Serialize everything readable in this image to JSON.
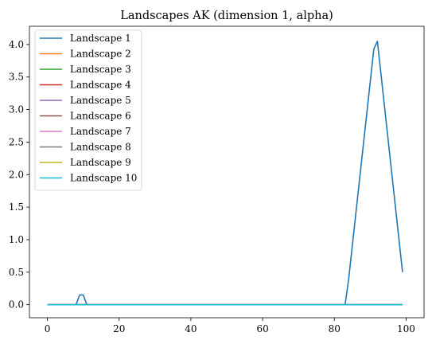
{
  "chart_data": {
    "type": "line",
    "title": "Landscapes AK (dimension 1, alpha)",
    "xlabel": "",
    "ylabel": "",
    "xlim": [
      -5,
      105
    ],
    "ylim": [
      -0.2,
      4.28
    ],
    "xticks": [
      0,
      20,
      40,
      60,
      80,
      100
    ],
    "yticks": [
      0.0,
      0.5,
      1.0,
      1.5,
      2.0,
      2.5,
      3.0,
      3.5,
      4.0
    ],
    "ytick_labels": [
      "0.0",
      "0.5",
      "1.0",
      "1.5",
      "2.0",
      "2.5",
      "3.0",
      "3.5",
      "4.0"
    ],
    "legend_position": "upper-left",
    "grid": false,
    "series": [
      {
        "name": "Landscape 1",
        "color": "#1f77b4",
        "points": [
          [
            0,
            0
          ],
          [
            8,
            0
          ],
          [
            9,
            0.15
          ],
          [
            10,
            0.15
          ],
          [
            11,
            0
          ],
          [
            83,
            0
          ],
          [
            84,
            0.4
          ],
          [
            91,
            3.93
          ],
          [
            92,
            4.05
          ],
          [
            99,
            0.5
          ]
        ]
      },
      {
        "name": "Landscape 2",
        "color": "#ff7f0e",
        "points": [
          [
            0,
            0
          ],
          [
            99,
            0
          ]
        ]
      },
      {
        "name": "Landscape 3",
        "color": "#2ca02c",
        "points": [
          [
            0,
            0
          ],
          [
            99,
            0
          ]
        ]
      },
      {
        "name": "Landscape 4",
        "color": "#d62728",
        "points": [
          [
            0,
            0
          ],
          [
            99,
            0
          ]
        ]
      },
      {
        "name": "Landscape 5",
        "color": "#9467bd",
        "points": [
          [
            0,
            0
          ],
          [
            99,
            0
          ]
        ]
      },
      {
        "name": "Landscape 6",
        "color": "#8c564b",
        "points": [
          [
            0,
            0
          ],
          [
            99,
            0
          ]
        ]
      },
      {
        "name": "Landscape 7",
        "color": "#e377c2",
        "points": [
          [
            0,
            0
          ],
          [
            99,
            0
          ]
        ]
      },
      {
        "name": "Landscape 8",
        "color": "#7f7f7f",
        "points": [
          [
            0,
            0
          ],
          [
            99,
            0
          ]
        ]
      },
      {
        "name": "Landscape 9",
        "color": "#bcbd22",
        "points": [
          [
            0,
            0
          ],
          [
            99,
            0
          ]
        ]
      },
      {
        "name": "Landscape 10",
        "color": "#17becf",
        "points": [
          [
            0,
            0
          ],
          [
            99,
            0
          ]
        ]
      }
    ]
  }
}
